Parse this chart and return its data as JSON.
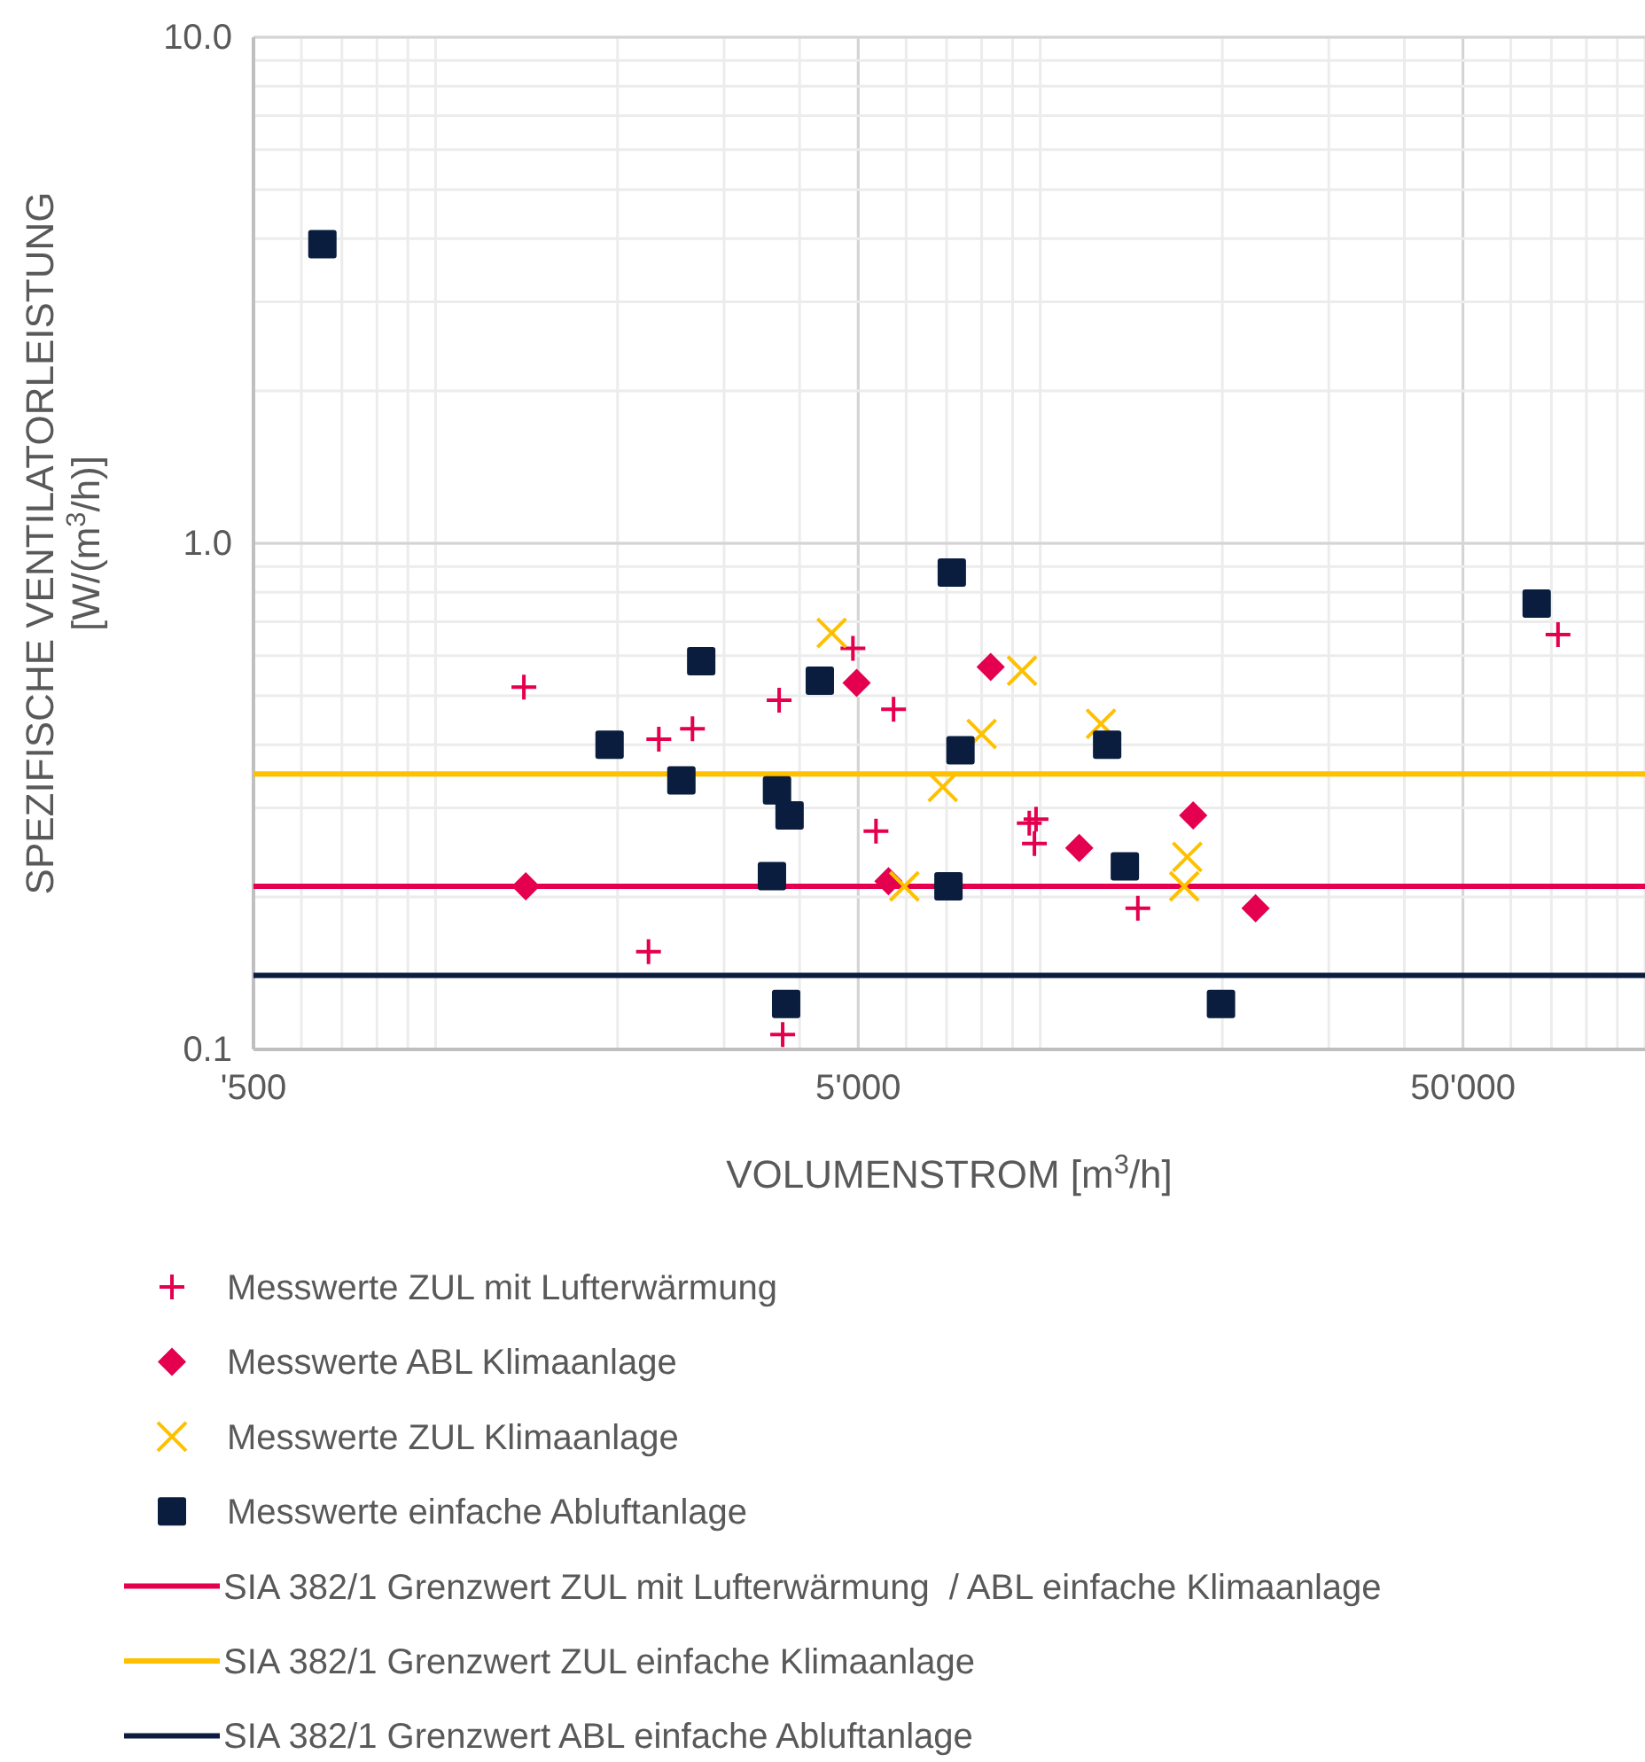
{
  "chart_data": {
    "type": "scatter",
    "xlabel": "VOLUMENSTROM [m$^{3}$/h]",
    "ylabel": "SPEZIFISCHE VENTILATORLEISTUNG [W/(m$^{3}$/h)]",
    "log": "xy",
    "grid": true,
    "legend": "bottom",
    "xlim": [
      500,
      100000
    ],
    "ylim": [
      0.1,
      10
    ],
    "xticks": [
      {
        "value": 500,
        "label": "'500"
      },
      {
        "value": 5000,
        "label": "5'000"
      },
      {
        "value": 50000,
        "label": "50'000"
      }
    ],
    "yticks": [
      {
        "value": 0.1,
        "label": "0.1"
      },
      {
        "value": 1,
        "label": "1.0"
      },
      {
        "value": 10,
        "label": "10.0"
      }
    ],
    "series": [
      {
        "name": "Messwerte ZUL mit Lufterwärmung",
        "color": "#e4004f",
        "marker": "plus",
        "x": [
          1400,
          2340,
          2660,
          3700,
          4900,
          5720,
          5350,
          3750,
          2250,
          9590,
          9840,
          9780,
          14500,
          71800
        ],
        "values": [
          0.52,
          0.41,
          0.43,
          0.49,
          0.62,
          0.47,
          0.27,
          0.107,
          0.156,
          0.28,
          0.285,
          0.255,
          0.19,
          0.66
        ]
      },
      {
        "name": "Messwerte ABL Klimaanlage",
        "color": "#e4004f",
        "marker": "diamond",
        "x": [
          1410,
          4970,
          5610,
          8280,
          11600,
          17900,
          22700
        ],
        "values": [
          0.21,
          0.53,
          0.215,
          0.57,
          0.25,
          0.29,
          0.19
        ]
      },
      {
        "name": "Messwerte ZUL Klimaanlage",
        "color": "#ffc000",
        "marker": "cross",
        "x": [
          4520,
          5960,
          6900,
          8000,
          9330,
          12600,
          17500,
          17300
        ],
        "values": [
          0.665,
          0.21,
          0.33,
          0.42,
          0.56,
          0.44,
          0.24,
          0.21
        ]
      },
      {
        "name": "Messwerte einfache Abluftanlage",
        "color": "#0a1d3e",
        "marker": "square",
        "x": [
          650,
          1940,
          2750,
          2550,
          3670,
          3850,
          3600,
          3800,
          4320,
          7140,
          7380,
          7050,
          12900,
          13800,
          19900,
          66200
        ],
        "values": [
          3.9,
          0.4,
          0.585,
          0.34,
          0.325,
          0.29,
          0.22,
          0.123,
          0.535,
          0.875,
          0.39,
          0.21,
          0.4,
          0.23,
          0.123,
          0.76
        ]
      }
    ],
    "ref_lines": [
      {
        "axis": "y",
        "value": 0.21,
        "label": "SIA 382/1 Grenzwert ZUL mit Lufterwärmung  / ABL einfache Klimaanlage",
        "color": "#e4004f"
      },
      {
        "axis": "y",
        "value": 0.35,
        "label": "SIA 382/1 Grenzwert ZUL einfache Klimaanlage",
        "color": "#ffc000"
      },
      {
        "axis": "y",
        "value": 0.14,
        "label": "SIA 382/1 Grenzwert ABL einfache Abluftanlage",
        "color": "#0a1d3e"
      }
    ]
  }
}
